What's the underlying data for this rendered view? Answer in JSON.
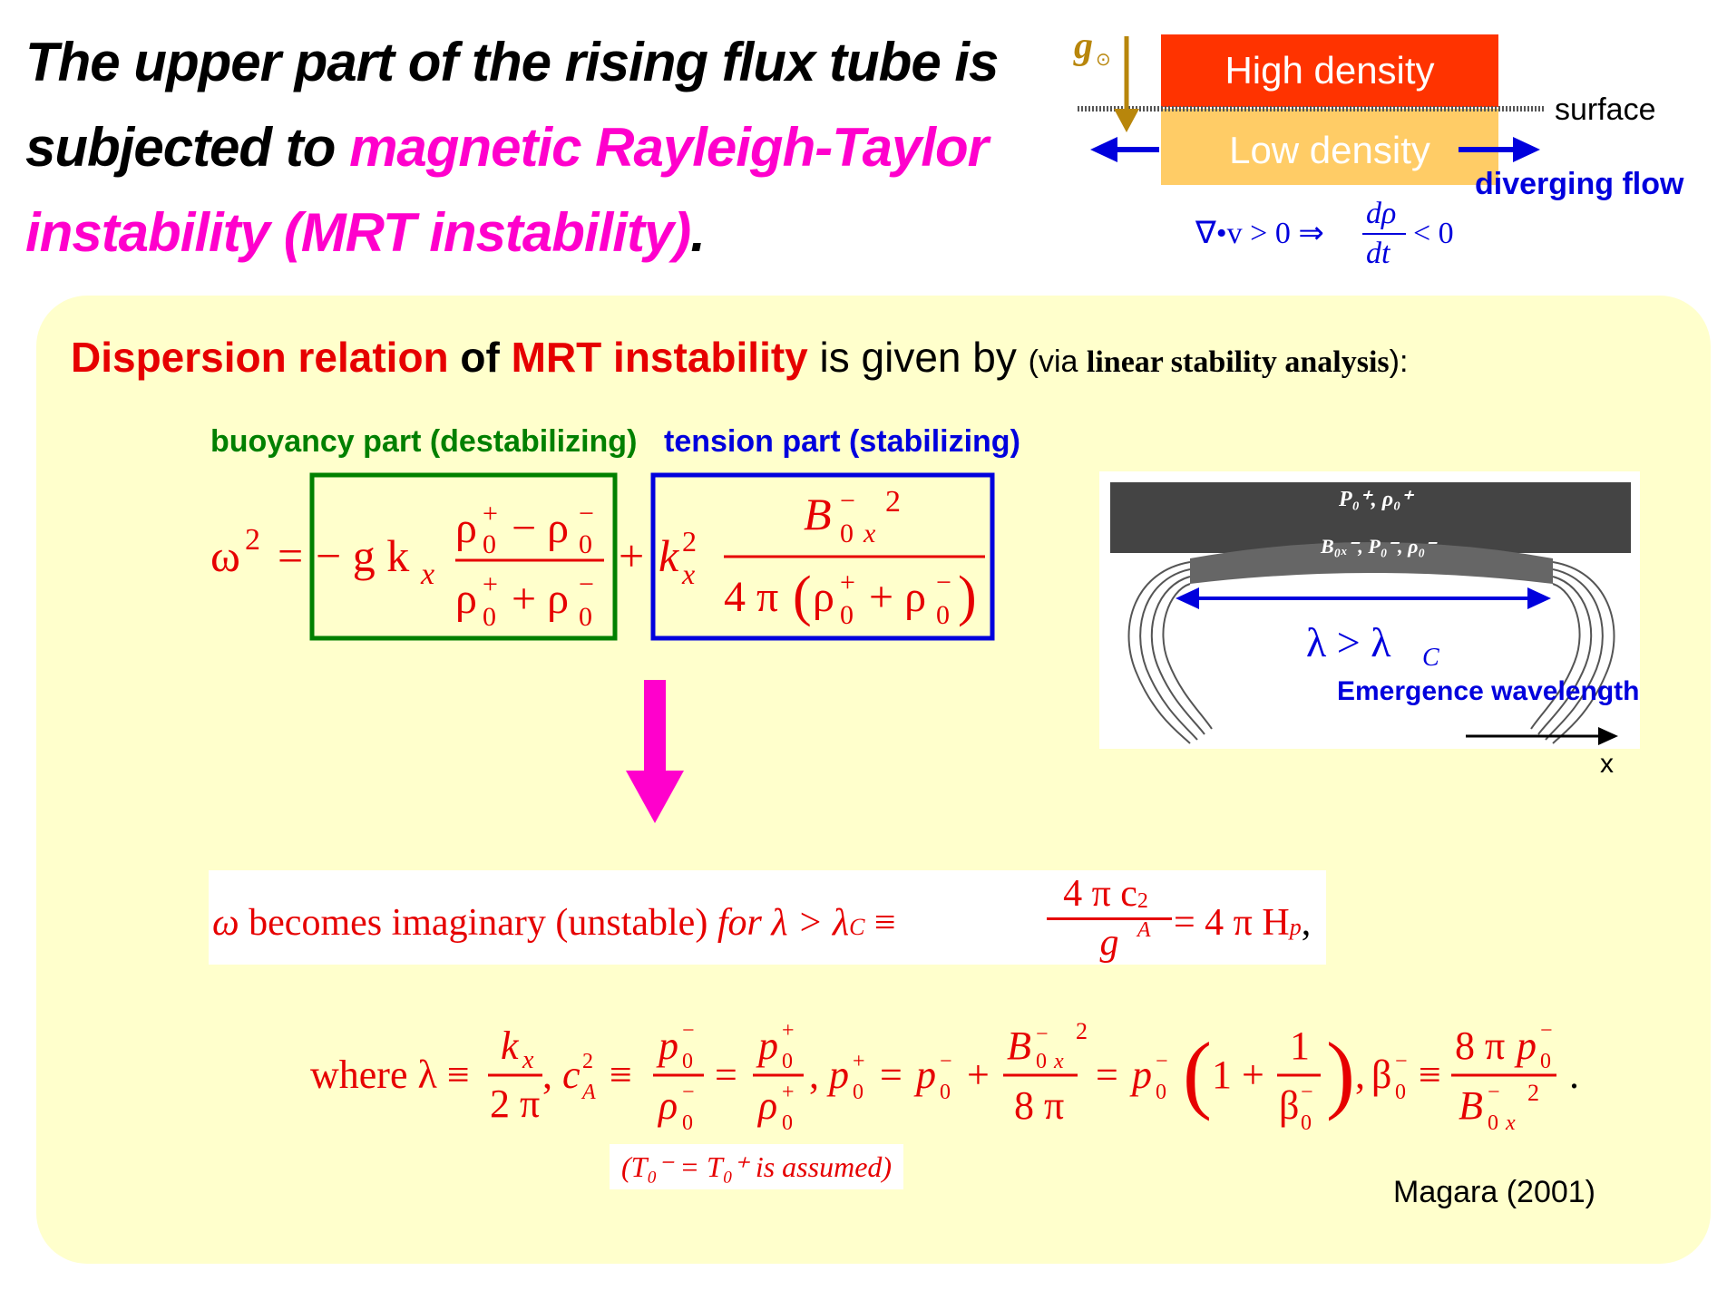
{
  "title": {
    "part1": "The upper part of the rising flux tube is subjected to ",
    "highlight": "magnetic Rayleigh-Taylor instability (MRT instability)",
    "end": "."
  },
  "top_diagram": {
    "gravity_symbol": "g",
    "sun_symbol": "⊙",
    "high_density": "High density",
    "low_density": "Low density",
    "surface": "surface",
    "diverging_flow": "diverging flow",
    "divergence_lhs": "∇•v > 0 ⇒",
    "d_rho": "dρ",
    "dt": "dt",
    "lt_zero": "< 0"
  },
  "dispersion": {
    "red1": "Dispersion relation",
    "of": " of ",
    "red2": "MRT instability",
    "given": " is given by ",
    "via_open": "(via ",
    "via_bold": "linear stability analysis",
    "via_close": "):"
  },
  "labels": {
    "buoyancy": "buoyancy part (destabilizing)",
    "tension": "tension part (stabilizing)"
  },
  "flux_diagram": {
    "top_label": "P₀⁺, ρ₀⁺",
    "mid_label": "B₀ₓ⁻, P₀⁻, ρ₀⁻",
    "lambda_rel": "λ > λ",
    "lambda_sub": "C",
    "emergence": "Emergence wavelength",
    "x_axis": "x"
  },
  "result": {
    "omega": "ω",
    "becomes": " becomes imaginary (unstable)  ",
    "for": "for λ > λ",
    "sub_c": "C",
    "equiv": " ≡ ",
    "num": "4 π c",
    "sub_A": "A",
    "sup_2": "2",
    "den": "g",
    "eq_rhs": "= 4 π H",
    "sub_p": "p",
    "comma": ","
  },
  "assumption": "T₀⁻ = T₀⁺ is assumed",
  "reference": "Magara (2001)",
  "colors": {
    "magenta": "#ff00cc",
    "red": "#e60000",
    "green": "#008000",
    "blue": "#0000dd",
    "panel": "#ffffcc",
    "high_density": "#ff3300",
    "low_density": "#ffcc66",
    "gravity_arrow": "#b8860b"
  }
}
